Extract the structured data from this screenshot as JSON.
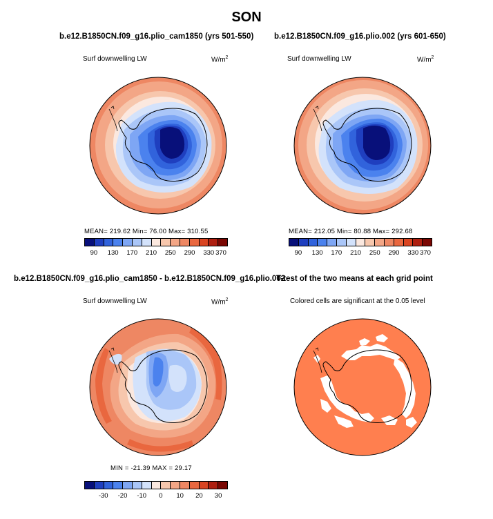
{
  "figure": {
    "title": "SON"
  },
  "panels": [
    {
      "title": "b.e12.B1850CN.f09_g16.plio_cam1850 (yrs 501-550)",
      "variable": "Surf downwelling LW",
      "units_base": "W/m",
      "units_exp": "2",
      "stats": "MEAN= 219.62    Min=   76.00    Max= 310.55",
      "colorbar_ticks": [
        "90",
        "130",
        "170",
        "210",
        "250",
        "290",
        "330",
        "370"
      ]
    },
    {
      "title": "b.e12.B1850CN.f09_g16.plio.002 (yrs 601-650)",
      "variable": "Surf downwelling LW",
      "units_base": "W/m",
      "units_exp": "2",
      "stats": "MEAN= 212.05    Min=   80.88    Max= 292.68",
      "colorbar_ticks": [
        "90",
        "130",
        "170",
        "210",
        "250",
        "290",
        "330",
        "370"
      ]
    },
    {
      "title": "b.e12.B1850CN.f09_g16.plio_cam1850 - b.e12.B1850CN.f09_g16.plio.002",
      "variable": "Surf downwelling LW",
      "units_base": "W/m",
      "units_exp": "2",
      "stats": "MIN = -21.39  MAX =  29.17",
      "colorbar_ticks": [
        "-30",
        "-20",
        "-10",
        "0",
        "10",
        "20",
        "30"
      ]
    },
    {
      "title": "T-test of the two means at each grid point",
      "note": "Colored cells are significant at the 0.05 level"
    }
  ],
  "colors": {
    "abs_scale": [
      "#08107a",
      "#1f3fbf",
      "#3163dc",
      "#4b82ee",
      "#7ea6f4",
      "#aac6f8",
      "#d3e2fb",
      "#fbe8df",
      "#f7c7ad",
      "#f3a686",
      "#ee8763",
      "#e9673f",
      "#d94421",
      "#ae1f10",
      "#7a0703"
    ],
    "diff_scale": [
      "#08107a",
      "#1f3fbf",
      "#3163dc",
      "#4b82ee",
      "#7ea6f4",
      "#aac6f8",
      "#d3e2fb",
      "#fbe8df",
      "#f7c7ad",
      "#f3a686",
      "#ee8763",
      "#e9673f",
      "#d94421",
      "#ae1f10",
      "#7a0703"
    ],
    "significant": "#ff7f4f"
  }
}
